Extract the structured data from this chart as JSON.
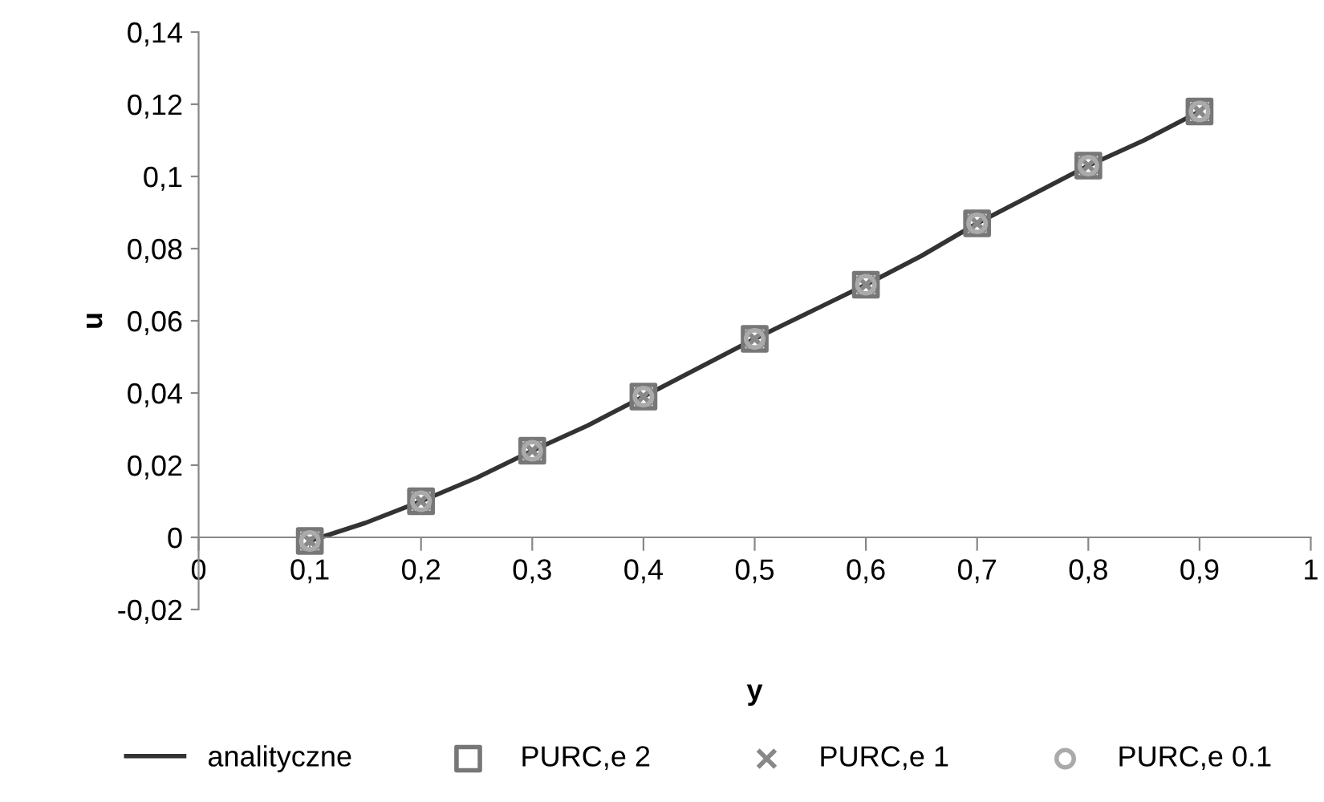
{
  "chart_data": {
    "type": "scatter",
    "xlabel": "y",
    "ylabel": "u",
    "x": [
      0.1,
      0.2,
      0.3,
      0.4,
      0.5,
      0.6,
      0.7,
      0.8,
      0.9
    ],
    "series": [
      {
        "name": "analityczne",
        "type": "line",
        "color": "#333333",
        "marker": "none",
        "line_style": "solid",
        "x": [
          0.1,
          0.15,
          0.2,
          0.25,
          0.3,
          0.35,
          0.4,
          0.45,
          0.5,
          0.55,
          0.6,
          0.65,
          0.7,
          0.75,
          0.8,
          0.85,
          0.9
        ],
        "values": [
          -0.001,
          0.004,
          0.01,
          0.0165,
          0.024,
          0.031,
          0.039,
          0.047,
          0.055,
          0.0625,
          0.07,
          0.078,
          0.087,
          0.095,
          0.103,
          0.11,
          0.118
        ]
      },
      {
        "name": "PURC,e 2",
        "color": "#777777",
        "marker": "square",
        "values": [
          -0.001,
          0.01,
          0.024,
          0.039,
          0.055,
          0.07,
          0.087,
          0.103,
          0.118
        ]
      },
      {
        "name": "PURC,e 1",
        "color": "#888888",
        "marker": "cross",
        "values": [
          -0.001,
          0.01,
          0.024,
          0.039,
          0.055,
          0.07,
          0.087,
          0.103,
          0.118
        ]
      },
      {
        "name": "PURC,e 0.1",
        "color": "#aaaaaa",
        "marker": "circle",
        "values": [
          -0.001,
          0.01,
          0.024,
          0.039,
          0.055,
          0.07,
          0.087,
          0.103,
          0.118
        ]
      }
    ],
    "xlim": [
      0,
      1
    ],
    "ylim": [
      -0.02,
      0.14
    ],
    "xticks": [
      0,
      {
        "value": 0.1,
        "label": "0,1"
      },
      {
        "value": 0.2,
        "label": "0,2"
      },
      {
        "value": 0.3,
        "label": "0,3"
      },
      {
        "value": 0.4,
        "label": "0,4"
      },
      {
        "value": 0.5,
        "label": "0,5"
      },
      {
        "value": 0.6,
        "label": "0,6"
      },
      {
        "value": 0.7,
        "label": "0,7"
      },
      {
        "value": 0.8,
        "label": "0,8"
      },
      {
        "value": 0.9,
        "label": "0,9"
      },
      1
    ],
    "yticks": [
      {
        "value": -0.02,
        "label": "-0,02"
      },
      0,
      {
        "value": 0.02,
        "label": "0,02"
      },
      {
        "value": 0.04,
        "label": "0,04"
      },
      {
        "value": 0.06,
        "label": "0,06"
      },
      {
        "value": 0.08,
        "label": "0,08"
      },
      {
        "value": 0.1,
        "label": "0,1"
      },
      {
        "value": 0.12,
        "label": "0,12"
      },
      {
        "value": 0.14,
        "label": "0,14"
      }
    ],
    "grid": false,
    "legend": "bottom"
  }
}
